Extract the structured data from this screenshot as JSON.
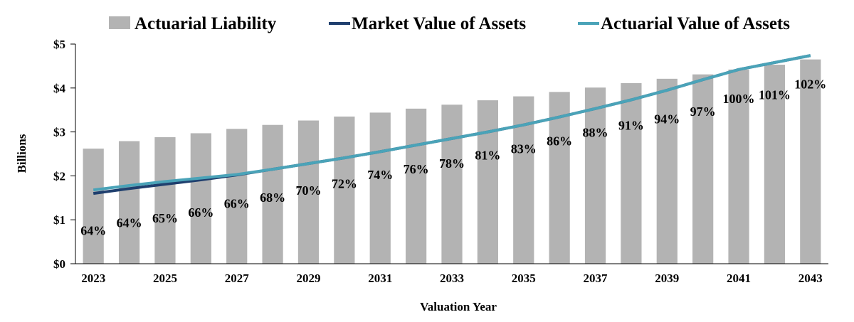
{
  "chart_data": {
    "type": "bar",
    "xlabel": "Valuation Year",
    "ylabel": "Billions",
    "ylim": [
      0,
      5
    ],
    "y_ticks": [
      "$0",
      "$1",
      "$2",
      "$3",
      "$4",
      "$5"
    ],
    "x_tick_labels": [
      "2023",
      "2025",
      "2027",
      "2029",
      "2031",
      "2033",
      "2035",
      "2037",
      "2039",
      "2041",
      "2043"
    ],
    "legend_position": "top",
    "grid": false,
    "categories": [
      "2023",
      "2024",
      "2025",
      "2026",
      "2027",
      "2028",
      "2029",
      "2030",
      "2031",
      "2032",
      "2033",
      "2034",
      "2035",
      "2036",
      "2037",
      "2038",
      "2039",
      "2040",
      "2041",
      "2042",
      "2043"
    ],
    "series": [
      {
        "name": "Actuarial Liability",
        "kind": "bar",
        "color": "#b3b3b3",
        "values": [
          2.62,
          2.79,
          2.88,
          2.97,
          3.07,
          3.16,
          3.26,
          3.35,
          3.44,
          3.53,
          3.62,
          3.72,
          3.81,
          3.91,
          4.01,
          4.11,
          4.21,
          4.31,
          4.42,
          4.53,
          4.65
        ]
      },
      {
        "name": "Market Value of Assets",
        "kind": "line",
        "color": "#1f3f6e",
        "values": [
          1.6,
          1.71,
          1.81,
          1.91,
          2.02,
          2.15,
          2.28,
          2.41,
          2.55,
          2.7,
          2.85,
          3.0,
          3.16,
          3.34,
          3.53,
          3.73,
          3.95,
          4.19,
          4.42,
          4.58,
          4.74
        ]
      },
      {
        "name": "Actuarial Value of Assets",
        "kind": "line",
        "color": "#4aa3b8",
        "values": [
          1.68,
          1.78,
          1.87,
          1.95,
          2.03,
          2.15,
          2.28,
          2.41,
          2.55,
          2.7,
          2.85,
          3.0,
          3.16,
          3.34,
          3.53,
          3.73,
          3.95,
          4.19,
          4.42,
          4.58,
          4.74
        ]
      }
    ],
    "funded_ratio_labels": [
      "64%",
      "64%",
      "65%",
      "66%",
      "66%",
      "68%",
      "70%",
      "72%",
      "74%",
      "76%",
      "78%",
      "81%",
      "83%",
      "86%",
      "88%",
      "91%",
      "94%",
      "97%",
      "100%",
      "101%",
      "102%"
    ],
    "funded_ratio_label_values": [
      0.77,
      0.95,
      1.05,
      1.18,
      1.38,
      1.52,
      1.68,
      1.84,
      2.04,
      2.17,
      2.3,
      2.48,
      2.63,
      2.81,
      3.0,
      3.16,
      3.31,
      3.48,
      3.77,
      3.86,
      4.1
    ]
  }
}
